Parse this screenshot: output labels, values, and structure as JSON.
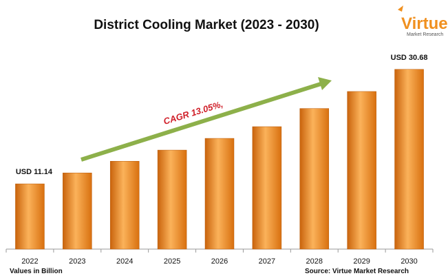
{
  "chart_data": {
    "type": "bar",
    "title": "District Cooling Market (2023 - 2030)",
    "categories": [
      "2022",
      "2023",
      "2024",
      "2025",
      "2026",
      "2027",
      "2028",
      "2029",
      "2030"
    ],
    "values": [
      11.14,
      13.0,
      15.0,
      16.9,
      18.9,
      20.9,
      24.0,
      26.9,
      30.68
    ],
    "value_labels": [
      "USD 11.14",
      null,
      null,
      null,
      null,
      null,
      null,
      null,
      "USD 30.68"
    ],
    "color": "#f0901f",
    "ylim": [
      0,
      33
    ],
    "annotation": "CAGR 13.05%,",
    "unit_note": "Values in Billion",
    "source": "Source: Virtue Market Research",
    "logo": {
      "name": "Virtue",
      "tagline": "Market Research"
    }
  }
}
